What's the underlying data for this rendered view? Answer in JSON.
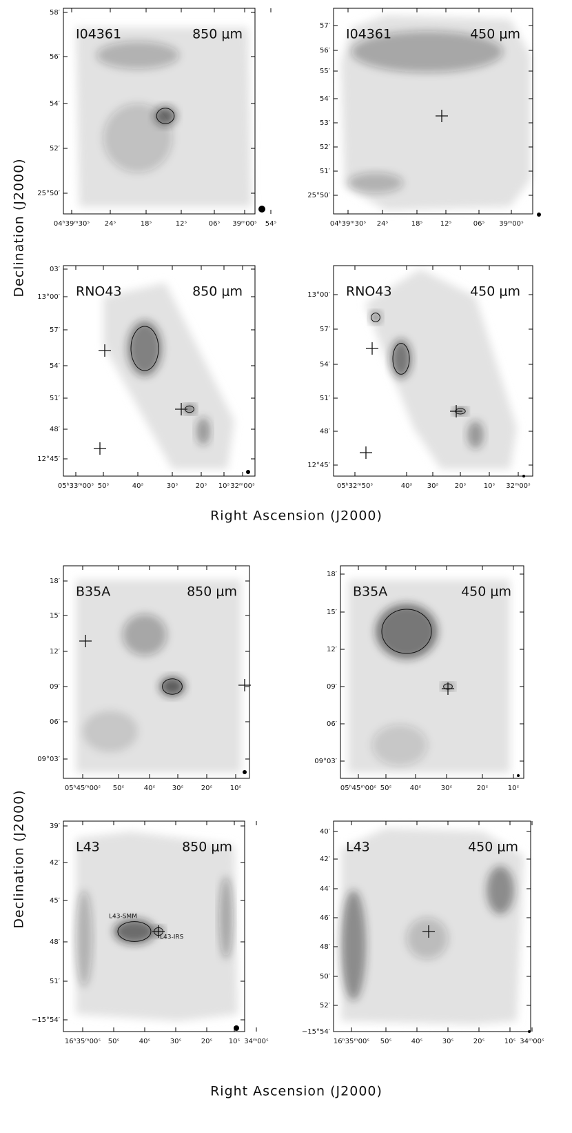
{
  "groups": [
    {
      "ylabel": "Declination (J2000)",
      "xlabel": "Right Ascension (J2000)",
      "panels": [
        {
          "source": "I04361",
          "band": "850 μm",
          "yticks": [
            "58′",
            "56′",
            "54′",
            "52′",
            "25°50′"
          ],
          "xticks": [
            "04ʰ39ᵐ30ˢ",
            "24ˢ",
            "18ˢ",
            "12ˢ",
            "06ˢ",
            "39ᵐ00ˢ",
            "54ˢ"
          ]
        },
        {
          "source": "I04361",
          "band": "450 μm",
          "yticks": [
            "57′",
            "56′",
            "55′",
            "54′",
            "53′",
            "52′",
            "51′",
            "25°50′"
          ],
          "xticks": [
            "04ʰ39ᵐ30ˢ",
            "24ˢ",
            "18ˢ",
            "12ˢ",
            "06ˢ",
            "39ᵐ00ˢ"
          ]
        },
        {
          "source": "RNO43",
          "band": "850 μm",
          "yticks": [
            "03′",
            "13°00′",
            "57′",
            "54′",
            "51′",
            "48′",
            "12°45′"
          ],
          "xticks": [
            "05ʰ33ᵐ00ˢ",
            "50ˢ",
            "40ˢ",
            "30ˢ",
            "20ˢ",
            "10ˢ",
            "32ᵐ00ˢ"
          ]
        },
        {
          "source": "RNO43",
          "band": "450 μm",
          "yticks": [
            "13°00′",
            "57′",
            "54′",
            "51′",
            "48′",
            "12°45′"
          ],
          "xticks": [
            "05ʰ32ᵐ50ˢ",
            "40ˢ",
            "30ˢ",
            "20ˢ",
            "10ˢ",
            "32ᵐ00ˢ"
          ]
        }
      ]
    },
    {
      "ylabel": "Declination (J2000)",
      "xlabel": "Right Ascension (J2000)",
      "panels": [
        {
          "source": "B35A",
          "band": "850 μm",
          "yticks": [
            "18′",
            "15′",
            "12′",
            "09′",
            "06′",
            "09°03′"
          ],
          "xticks": [
            "05ʰ45ᵐ00ˢ",
            "50ˢ",
            "40ˢ",
            "30ˢ",
            "20ˢ",
            "10ˢ"
          ]
        },
        {
          "source": "B35A",
          "band": "450 μm",
          "yticks": [
            "18′",
            "15′",
            "12′",
            "09′",
            "06′",
            "09°03′"
          ],
          "xticks": [
            "05ʰ45ᵐ00ˢ",
            "50ˢ",
            "40ˢ",
            "30ˢ",
            "20ˢ",
            "10ˢ"
          ]
        },
        {
          "source": "L43",
          "band": "850 μm",
          "yticks": [
            "39′",
            "42′",
            "45′",
            "48′",
            "51′",
            "−15°54′"
          ],
          "xticks": [
            "16ʰ35ᵐ00ˢ",
            "50ˢ",
            "40ˢ",
            "30ˢ",
            "20ˢ",
            "10ˢ",
            "34ᵐ00ˢ"
          ],
          "annotations": [
            "L43-SMM",
            "L43-IRS"
          ]
        },
        {
          "source": "L43",
          "band": "450 μm",
          "yticks": [
            "40′",
            "42′",
            "44′",
            "46′",
            "48′",
            "50′",
            "52′",
            "−15°54′"
          ],
          "xticks": [
            "16ʰ35ᵐ00ˢ",
            "50ˢ",
            "40ˢ",
            "30ˢ",
            "20ˢ",
            "10ˢ",
            "34ᵐ00ˢ"
          ]
        }
      ]
    }
  ]
}
